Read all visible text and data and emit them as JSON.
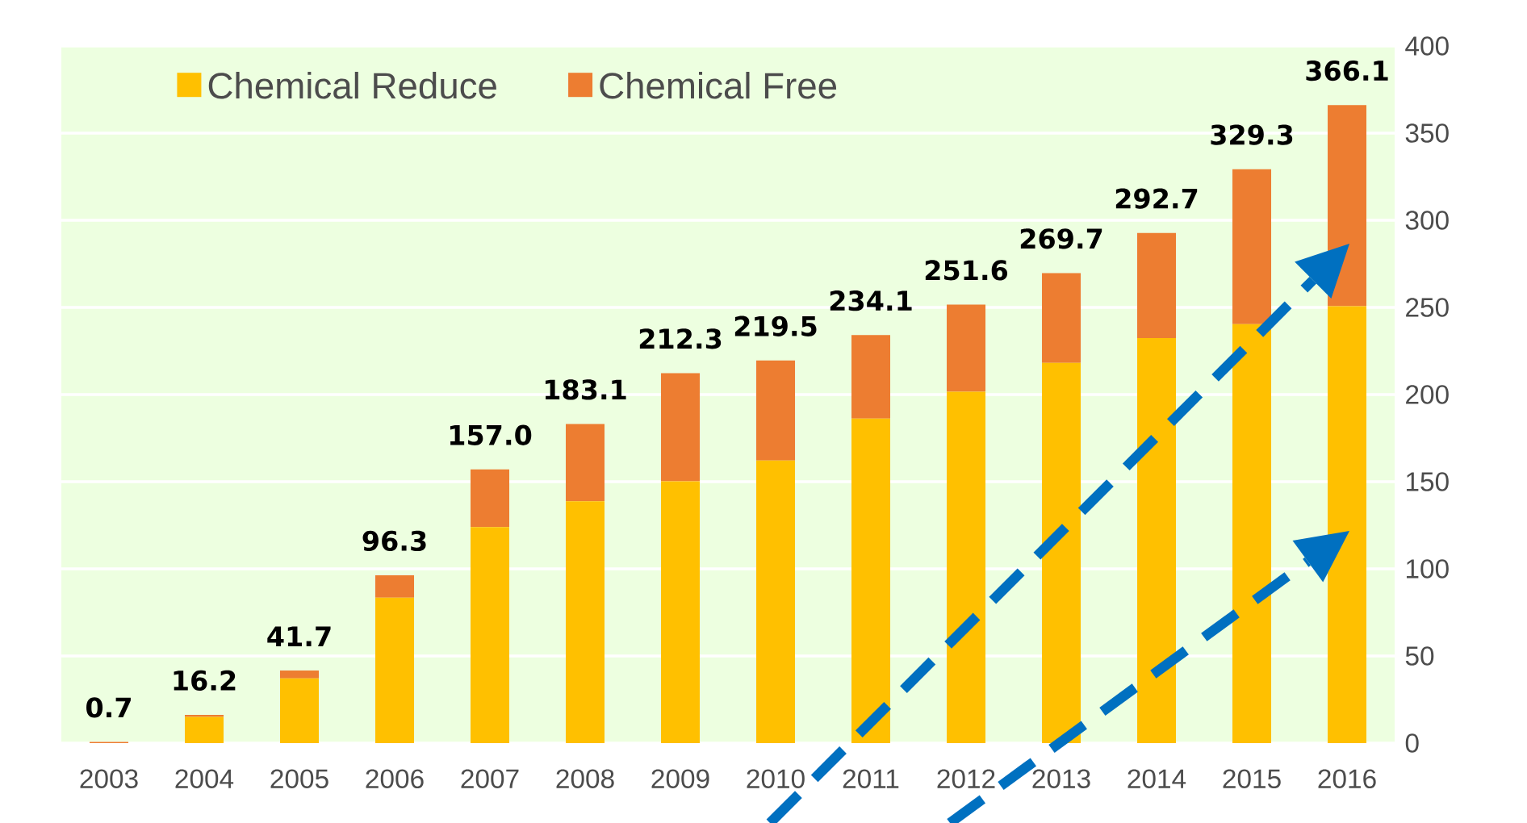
{
  "chart_data": {
    "type": "bar",
    "stacked": true,
    "categories": [
      "2003",
      "2004",
      "2005",
      "2006",
      "2007",
      "2008",
      "2009",
      "2010",
      "2011",
      "2012",
      "2013",
      "2014",
      "2015",
      "2016"
    ],
    "series": [
      {
        "name": "Chemical Reduce",
        "color": "#ffc000",
        "values": [
          0,
          15,
          37.1,
          83.4,
          123.9,
          138.8,
          150.2,
          162.2,
          186.2,
          201.6,
          218.2,
          232.4,
          240.4,
          250.7
        ]
      },
      {
        "name": "Chemical Free",
        "color": "#ed7d31",
        "values": [
          0.7,
          1.2,
          4.6,
          12.9,
          33.1,
          44.3,
          62.1,
          57.3,
          47.9,
          50,
          51.5,
          60.3,
          88.9,
          115.4
        ]
      }
    ],
    "totals": [
      "0.7",
      "16.2",
      "41.7",
      "96.3",
      "157.0",
      "183.1",
      "212.3",
      "219.5",
      "234.1",
      "251.6",
      "269.7",
      "292.7",
      "329.3",
      "366.1"
    ],
    "ylim": [
      0,
      400
    ],
    "yticks": [
      0,
      50,
      100,
      150,
      200,
      250,
      300,
      350,
      400
    ],
    "grid": "y",
    "legend": "top left"
  }
}
